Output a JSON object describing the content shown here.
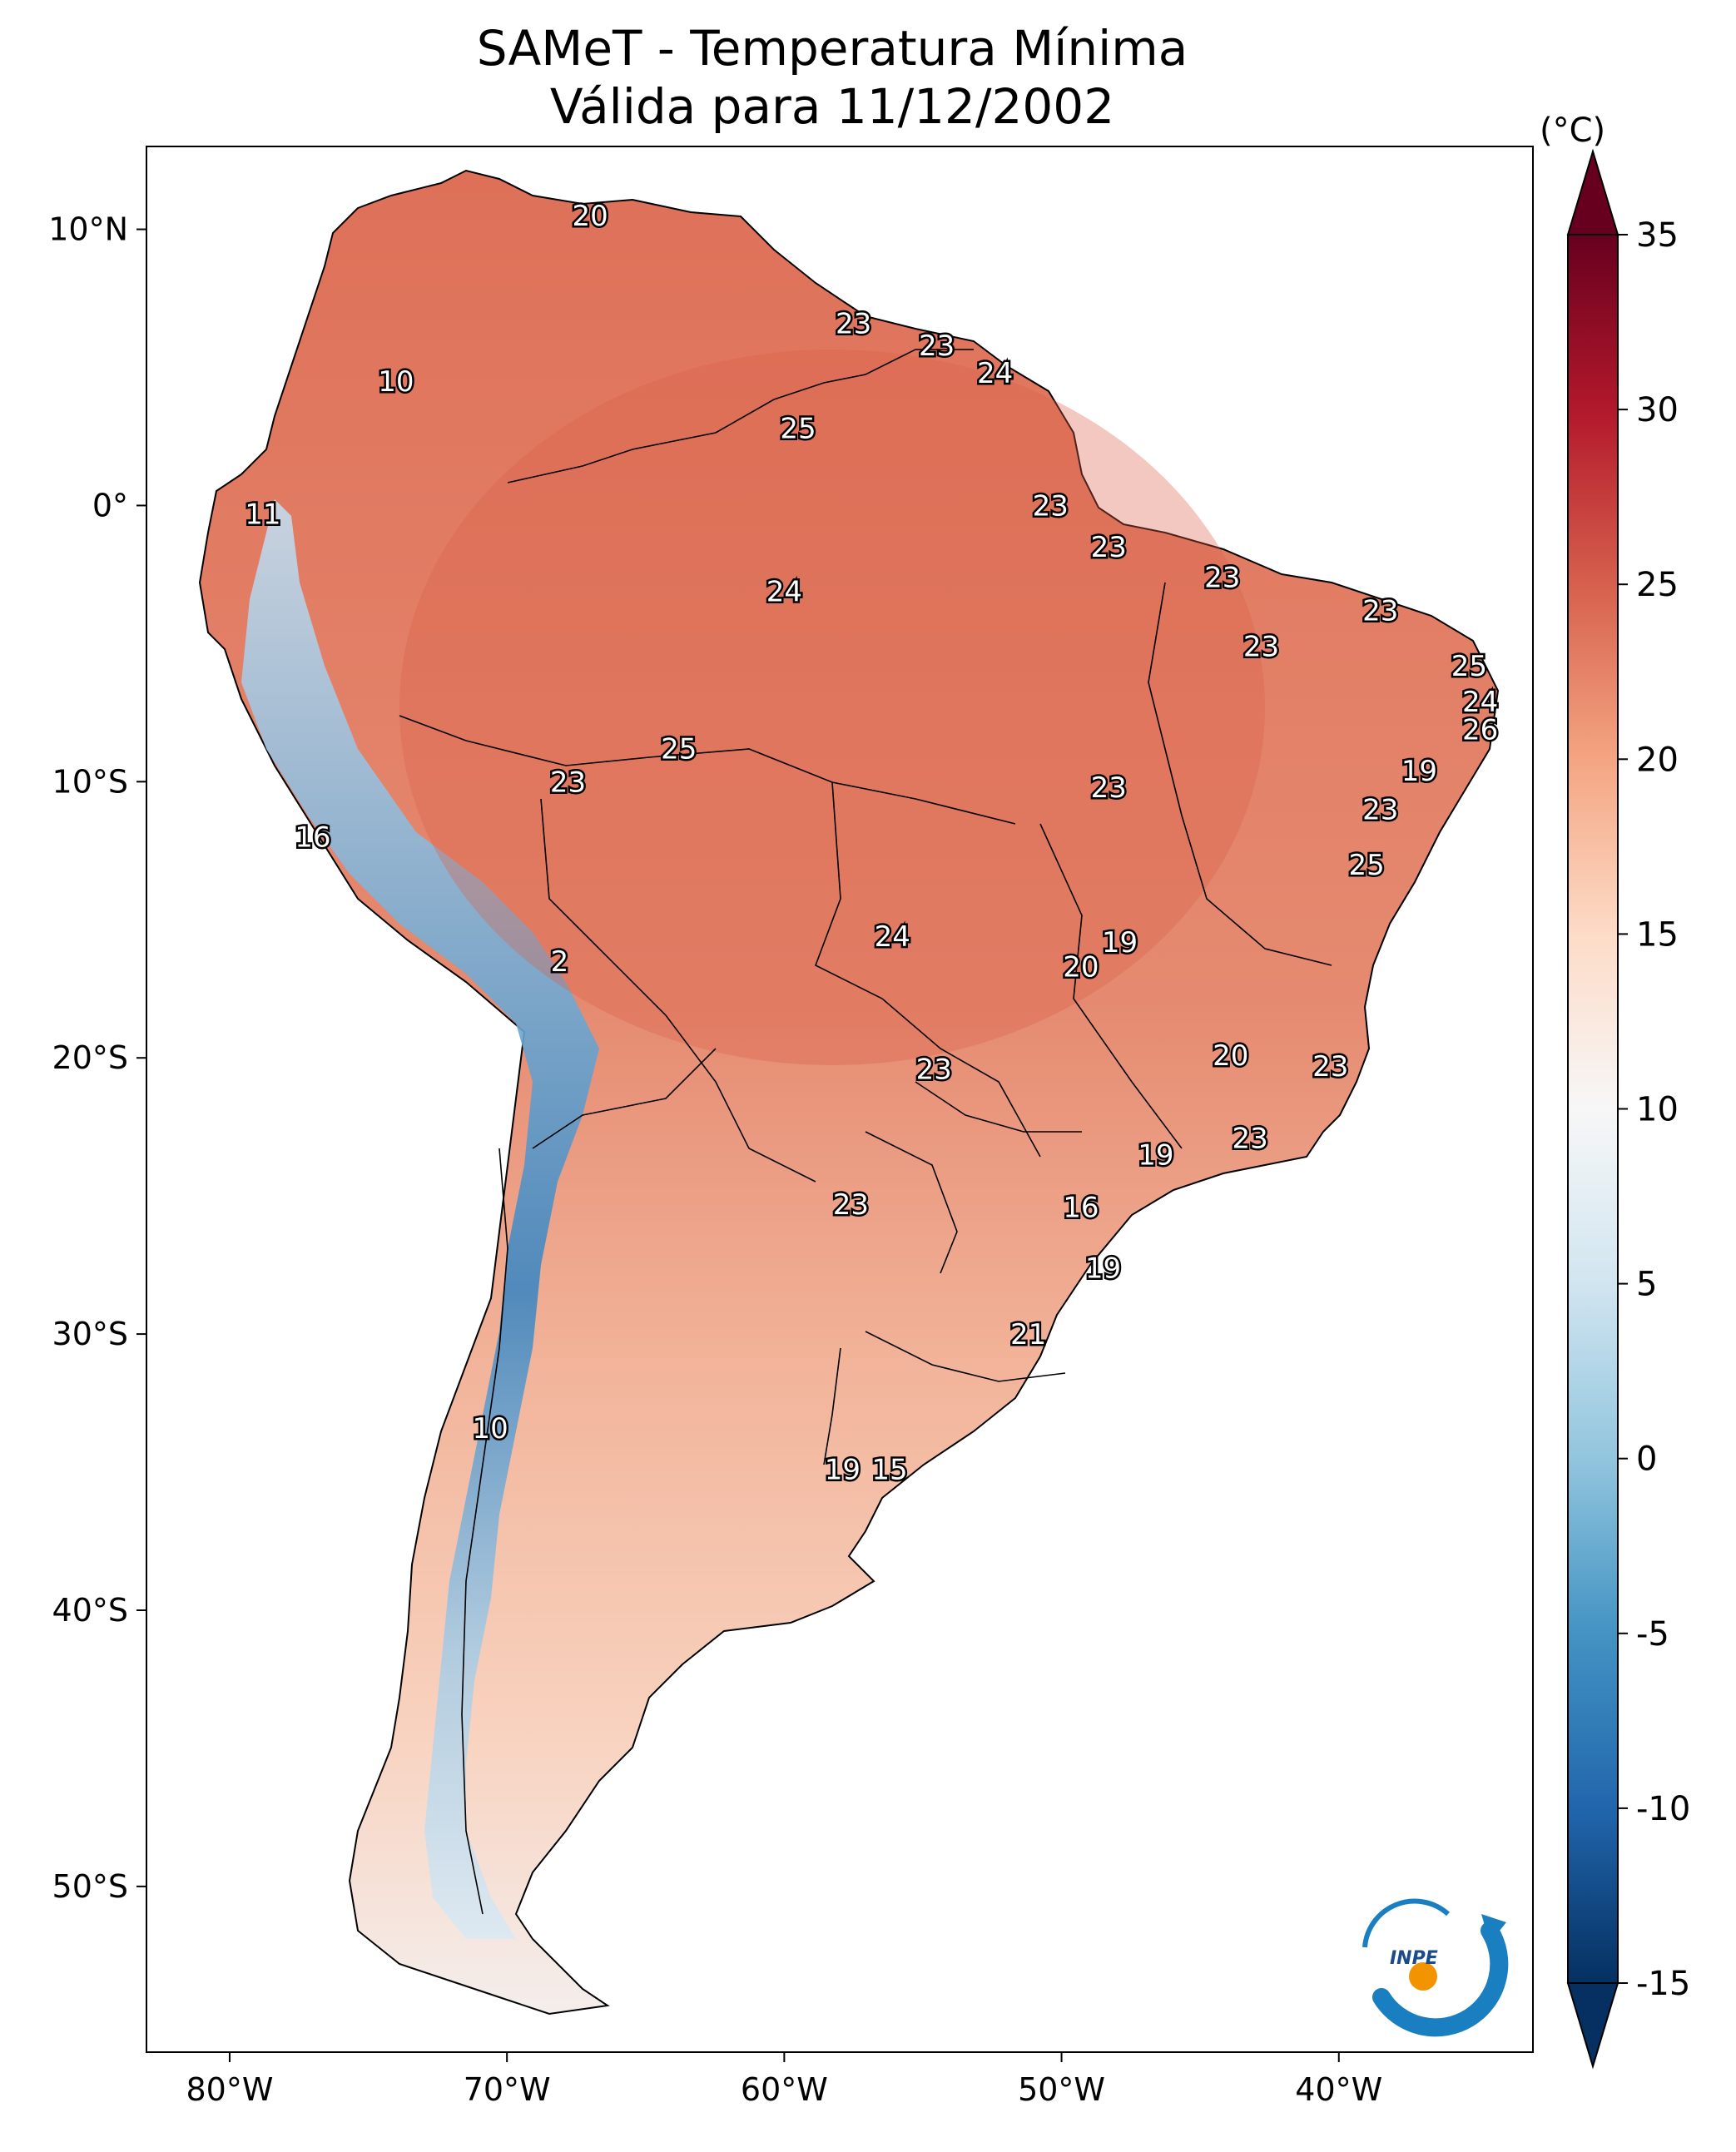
{
  "title": {
    "line1": "SAMeT - Temperatura Mínima",
    "line2": "Válida para 11/12/2002"
  },
  "axes": {
    "lon_ticks": [
      "80°W",
      "70°W",
      "60°W",
      "50°W",
      "40°W"
    ],
    "lat_ticks": [
      "10°N",
      "0°",
      "10°S",
      "20°S",
      "30°S",
      "40°S",
      "50°S"
    ],
    "lon_range": [
      -83,
      -33
    ],
    "lat_range": [
      -56,
      13
    ]
  },
  "colorbar": {
    "unit": "(°C)",
    "ticks": [
      "35",
      "30",
      "25",
      "20",
      "15",
      "10",
      "5",
      "0",
      "-5",
      "-10",
      "-15"
    ],
    "range": [
      -15,
      35
    ],
    "colors": [
      "#053061",
      "#2166ac",
      "#4393c3",
      "#92c5de",
      "#d1e5f0",
      "#f7f7f7",
      "#fddbc7",
      "#f4a582",
      "#d6604d",
      "#b2182b",
      "#67001f"
    ]
  },
  "point_values": [
    {
      "text": "20",
      "lon": -67.0,
      "lat": 10.5
    },
    {
      "text": "10",
      "lon": -74.0,
      "lat": 4.5
    },
    {
      "text": "23",
      "lon": -57.5,
      "lat": 6.6
    },
    {
      "text": "23",
      "lon": -54.5,
      "lat": 5.8
    },
    {
      "text": "24",
      "lon": -52.4,
      "lat": 4.8
    },
    {
      "text": "25",
      "lon": -59.5,
      "lat": 2.8
    },
    {
      "text": "11",
      "lon": -78.8,
      "lat": -0.3
    },
    {
      "text": "23",
      "lon": -50.4,
      "lat": 0.0
    },
    {
      "text": "23",
      "lon": -48.3,
      "lat": -1.5
    },
    {
      "text": "24",
      "lon": -60.0,
      "lat": -3.1
    },
    {
      "text": "23",
      "lon": -44.2,
      "lat": -2.6
    },
    {
      "text": "23",
      "lon": -38.5,
      "lat": -3.8
    },
    {
      "text": "23",
      "lon": -42.8,
      "lat": -5.1
    },
    {
      "text": "25",
      "lon": -35.3,
      "lat": -5.8
    },
    {
      "text": "24",
      "lon": -34.9,
      "lat": -7.1
    },
    {
      "text": "26",
      "lon": -34.9,
      "lat": -8.1
    },
    {
      "text": "25",
      "lon": -63.8,
      "lat": -8.8
    },
    {
      "text": "23",
      "lon": -67.8,
      "lat": -10.0
    },
    {
      "text": "23",
      "lon": -48.3,
      "lat": -10.2
    },
    {
      "text": "19",
      "lon": -37.1,
      "lat": -9.6
    },
    {
      "text": "23",
      "lon": -38.5,
      "lat": -11.0
    },
    {
      "text": "16",
      "lon": -77.0,
      "lat": -12.0
    },
    {
      "text": "25",
      "lon": -39.0,
      "lat": -13.0
    },
    {
      "text": "24",
      "lon": -56.1,
      "lat": -15.6
    },
    {
      "text": "19",
      "lon": -47.9,
      "lat": -15.8
    },
    {
      "text": "20",
      "lon": -49.3,
      "lat": -16.7
    },
    {
      "text": "2",
      "lon": -68.1,
      "lat": -16.5
    },
    {
      "text": "20",
      "lon": -43.9,
      "lat": -19.9
    },
    {
      "text": "23",
      "lon": -54.6,
      "lat": -20.4
    },
    {
      "text": "23",
      "lon": -40.3,
      "lat": -20.3
    },
    {
      "text": "23",
      "lon": -43.2,
      "lat": -22.9
    },
    {
      "text": "19",
      "lon": -46.6,
      "lat": -23.5
    },
    {
      "text": "23",
      "lon": -57.6,
      "lat": -25.3
    },
    {
      "text": "16",
      "lon": -49.3,
      "lat": -25.4
    },
    {
      "text": "19",
      "lon": -48.5,
      "lat": -27.6
    },
    {
      "text": "21",
      "lon": -51.2,
      "lat": -30.0
    },
    {
      "text": "10",
      "lon": -70.6,
      "lat": -33.4
    },
    {
      "text": "19",
      "lon": -57.9,
      "lat": -34.9
    },
    {
      "text": "15",
      "lon": -56.2,
      "lat": -34.9
    }
  ],
  "logo": {
    "text": "INPE"
  }
}
